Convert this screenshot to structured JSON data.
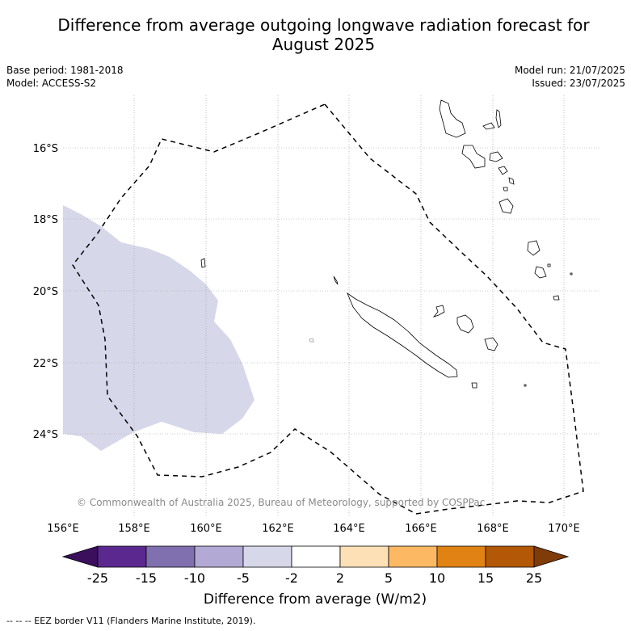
{
  "title_line1": "Difference from average outgoing longwave radiation forecast for",
  "title_line2": "August 2025",
  "base_period": "Base period: 1981-2018",
  "model": "Model: ACCESS-S2",
  "model_run": "Model run: 21/07/2025",
  "issued": "Issued: 23/07/2025",
  "copyright": "© Commonwealth of Australia 2025, Bureau of Meteorology, supported by COSPPac",
  "footer": "--  --  -- EEZ border V11 (Flanders Marine Institute, 2019).",
  "map": {
    "lon_ticks": [
      "156°E",
      "158°E",
      "160°E",
      "162°E",
      "164°E",
      "166°E",
      "168°E",
      "170°E"
    ],
    "lat_ticks": [
      "16°S",
      "18°S",
      "20°S",
      "22°S",
      "24°S"
    ],
    "anomaly_region_color": "#d7d7ea",
    "eez_style": "dashed"
  },
  "colorbar": {
    "title": "Difference from average (W/m2)",
    "tick_labels": [
      "-25",
      "-15",
      "-10",
      "-5",
      "-2",
      "2",
      "5",
      "10",
      "15",
      "25"
    ],
    "colors": [
      "#3b0f5c",
      "#5b2890",
      "#8070b0",
      "#b2aad4",
      "#d7d7ea",
      "#ffffff",
      "#fee0b6",
      "#fdb863",
      "#e08214",
      "#b35806",
      "#7f3b08"
    ]
  }
}
